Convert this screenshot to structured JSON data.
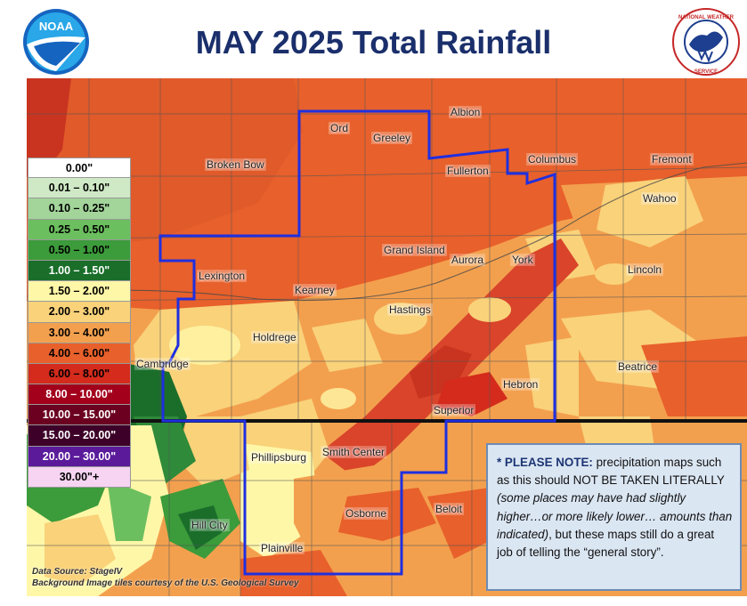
{
  "title": "MAY 2025 Total Rainfall",
  "logos": {
    "left": "NOAA",
    "right": "NATIONAL WEATHER SERVICE",
    "left_icon": "noaa-logo-icon",
    "right_icon": "nws-logo-icon"
  },
  "legend": [
    {
      "label": "0.00\"",
      "color": "#ffffff",
      "text_color": "#000000"
    },
    {
      "label": "0.01 – 0.10\"",
      "color": "#cfe9c6",
      "text_color": "#000000"
    },
    {
      "label": "0.10 – 0.25\"",
      "color": "#a3d59a",
      "text_color": "#000000"
    },
    {
      "label": "0.25 – 0.50\"",
      "color": "#6cbf5f",
      "text_color": "#000000"
    },
    {
      "label": "0.50 – 1.00\"",
      "color": "#3c9b3a",
      "text_color": "#000000"
    },
    {
      "label": "1.00 – 1.50\"",
      "color": "#1a6e2a",
      "text_color": "#ffffff"
    },
    {
      "label": "1.50 – 2.00\"",
      "color": "#fff7a8",
      "text_color": "#000000"
    },
    {
      "label": "2.00 – 3.00\"",
      "color": "#f9d27a",
      "text_color": "#000000"
    },
    {
      "label": "3.00 – 4.00\"",
      "color": "#f3a04e",
      "text_color": "#000000"
    },
    {
      "label": "4.00 – 6.00\"",
      "color": "#e8602b",
      "text_color": "#000000"
    },
    {
      "label": "6.00 – 8.00\"",
      "color": "#d42b1c",
      "text_color": "#000000"
    },
    {
      "label": "8.00 – 10.00\"",
      "color": "#a3001c",
      "text_color": "#ffffff"
    },
    {
      "label": "10.00 – 15.00\"",
      "color": "#6b0020",
      "text_color": "#ffffff"
    },
    {
      "label": "15.00 – 20.00\"",
      "color": "#3d0028",
      "text_color": "#ffffff"
    },
    {
      "label": "20.00 – 30.00\"",
      "color": "#5a1a9a",
      "text_color": "#ffffff"
    },
    {
      "label": "30.00\"+",
      "color": "#f6d4f2",
      "text_color": "#000000"
    }
  ],
  "cities": [
    "Albion",
    "Ord",
    "Greeley",
    "Fullerton",
    "Columbus",
    "Fremont",
    "Broken Bow",
    "Wahoo",
    "Grand Island",
    "Aurora",
    "York",
    "Lexington",
    "Kearney",
    "Lincoln",
    "Hastings",
    "Holdrege",
    "Cambridge",
    "Beatrice",
    "Hebron",
    "Superior",
    "Phillipsburg",
    "Smith Center",
    "Osborne",
    "Beloit",
    "Hill City",
    "Plainville"
  ],
  "note": {
    "heading": "* PLEASE NOTE:",
    "text1": " precipitation maps such as this should NOT BE TAKEN LITERALLY ",
    "italic": "(some places may have had slightly higher…or more likely lower… amounts than indicated)",
    "text2": ", but these maps still do a great job of telling the “general story”."
  },
  "source": {
    "line1": "Data Source: StageIV",
    "line2": "Background Image tiles courtesy of the U.S. Geological Survey"
  },
  "colors": {
    "title": "#1a2f6b",
    "boundary": "#1f2fe0",
    "state_line": "#111111"
  }
}
